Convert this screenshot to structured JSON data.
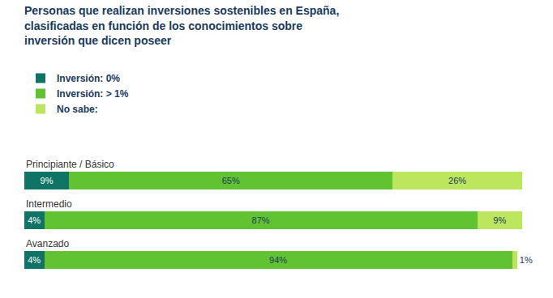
{
  "chart_data": {
    "type": "bar",
    "title": "Personas que realizan inversiones sostenibles en España,\nclasificadas en función de los conocimientos sobre\ninversión que dicen poseer",
    "orientation": "horizontal",
    "stacked": true,
    "data_labels": true,
    "tick_labels": false,
    "grid": false,
    "legend": "top-left",
    "categories": [
      "Principiante / Básico",
      "Intermedio",
      "Avanzado"
    ],
    "xlim": [
      0,
      100
    ],
    "series": [
      {
        "name": "Inversión: 0%",
        "color": "#0f7466",
        "values": [
          9,
          4,
          4
        ],
        "value_labels": [
          "9%",
          "4%",
          "4%"
        ]
      },
      {
        "name": "Inversión: > 1%",
        "color": "#62c332",
        "values": [
          65,
          87,
          94
        ],
        "value_labels": [
          "65%",
          "87%",
          "94%"
        ]
      },
      {
        "name": "No sabe:",
        "color": "#bde65f",
        "values": [
          26,
          9,
          1
        ],
        "value_labels": [
          "26%",
          "9%",
          "1%"
        ]
      }
    ]
  }
}
